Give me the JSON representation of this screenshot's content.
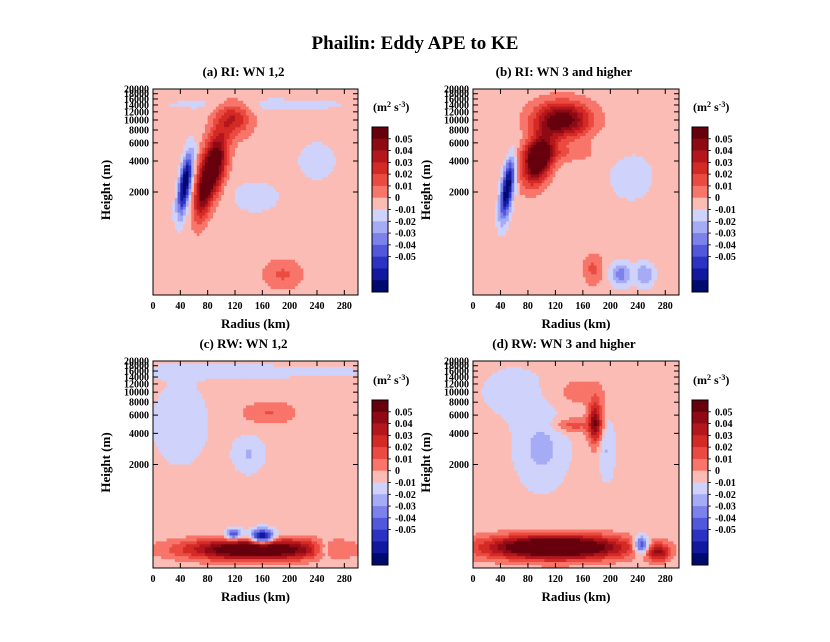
{
  "title": "Phailin: Eddy APE to KE",
  "panels": [
    {
      "id": "a",
      "label": "(a)  RI: WN 1,2"
    },
    {
      "id": "b",
      "label": "(b)  RI: WN 3 and higher"
    },
    {
      "id": "c",
      "label": "(c)  RW: WN 1,2"
    },
    {
      "id": "d",
      "label": "(d)  RW: WN 3 and higher"
    }
  ],
  "colorbar": {
    "unit_base": "(m",
    "unit_exp1": "2",
    "unit_mid": " s",
    "unit_exp2": "-3",
    "unit_end": ")",
    "labels": [
      "0.05",
      "0.04",
      "0.03",
      "0.02",
      "0.01",
      "0",
      "-0.01",
      "-0.02",
      "-0.03",
      "-0.04",
      "-0.05"
    ],
    "colors": [
      "#67000d",
      "#8e0a14",
      "#b4161d",
      "#d42a26",
      "#eb4a40",
      "#f8756a",
      "#fcbcb6",
      "#cfd2fb",
      "#a6abf5",
      "#7c82ea",
      "#5158db",
      "#2c33c3",
      "#12199e",
      "#000a6e"
    ]
  },
  "chart_data": [
    {
      "type": "heatmap",
      "panel": "a",
      "title": "(a)  RI: WN 1,2",
      "xlabel": "Radius (km)",
      "ylabel": "Height (m)",
      "xticks": [
        0,
        40,
        80,
        120,
        160,
        200,
        240,
        280
      ],
      "yticks": [
        2000,
        4000,
        6000,
        8000,
        10000,
        12000,
        14000,
        16000,
        18000,
        20000
      ],
      "xlim": [
        0,
        300
      ],
      "ylim": [
        200,
        20000
      ],
      "yscale": "log",
      "zrange": [
        -0.05,
        0.05
      ],
      "contour_interval": 0.005,
      "features": [
        {
          "r": 85,
          "z": 3800,
          "value": 0.055
        },
        {
          "r": 120,
          "z": 10500,
          "value": 0.025
        },
        {
          "r": 47,
          "z": 2500,
          "value": -0.05
        },
        {
          "r": 190,
          "z": 300,
          "value": 0.012
        }
      ]
    },
    {
      "type": "heatmap",
      "panel": "b",
      "title": "(b)  RI: WN 3 and higher",
      "xlabel": "Radius (km)",
      "ylabel": "Height (m)",
      "xticks": [
        0,
        40,
        80,
        120,
        160,
        200,
        240,
        280
      ],
      "yticks": [
        2000,
        4000,
        6000,
        8000,
        10000,
        12000,
        14000,
        16000,
        18000,
        20000
      ],
      "xlim": [
        0,
        300
      ],
      "ylim": [
        200,
        20000
      ],
      "yscale": "log",
      "zrange": [
        -0.05,
        0.05
      ],
      "contour_interval": 0.005,
      "features": [
        {
          "r": 85,
          "z": 4000,
          "value": 0.06
        },
        {
          "r": 130,
          "z": 10000,
          "value": 0.045
        },
        {
          "r": 50,
          "z": 2300,
          "value": -0.05
        },
        {
          "r": 215,
          "z": 300,
          "value": -0.02
        }
      ]
    },
    {
      "type": "heatmap",
      "panel": "c",
      "title": "(c)  RW: WN 1,2",
      "xlabel": "Radius (km)",
      "ylabel": "Height (m)",
      "xticks": [
        0,
        40,
        80,
        120,
        160,
        200,
        240,
        280
      ],
      "yticks": [
        2000,
        4000,
        6000,
        8000,
        10000,
        12000,
        14000,
        16000,
        18000,
        20000
      ],
      "xlim": [
        0,
        300
      ],
      "ylim": [
        200,
        20000
      ],
      "yscale": "log",
      "zrange": [
        -0.05,
        0.05
      ],
      "contour_interval": 0.005,
      "features": [
        {
          "r": 150,
          "z": 350,
          "value": 0.06
        },
        {
          "r": 165,
          "z": 420,
          "value": -0.05
        },
        {
          "r": 140,
          "z": 4500,
          "value": 0.012
        },
        {
          "r": 140,
          "z": 2500,
          "value": -0.012
        }
      ]
    },
    {
      "type": "heatmap",
      "panel": "d",
      "title": "(d)  RW: WN 3 and higher",
      "xlabel": "Radius (km)",
      "ylabel": "Height (m)",
      "xticks": [
        0,
        40,
        80,
        120,
        160,
        200,
        240,
        280
      ],
      "yticks": [
        2000,
        4000,
        6000,
        8000,
        10000,
        12000,
        14000,
        16000,
        18000,
        20000
      ],
      "xlim": [
        0,
        300
      ],
      "ylim": [
        200,
        20000
      ],
      "yscale": "log",
      "zrange": [
        -0.05,
        0.05
      ],
      "contour_interval": 0.005,
      "features": [
        {
          "r": 130,
          "z": 380,
          "value": 0.06
        },
        {
          "r": 175,
          "z": 4800,
          "value": 0.04
        },
        {
          "r": 245,
          "z": 400,
          "value": -0.04
        },
        {
          "r": 100,
          "z": 3000,
          "value": -0.015
        }
      ]
    }
  ]
}
